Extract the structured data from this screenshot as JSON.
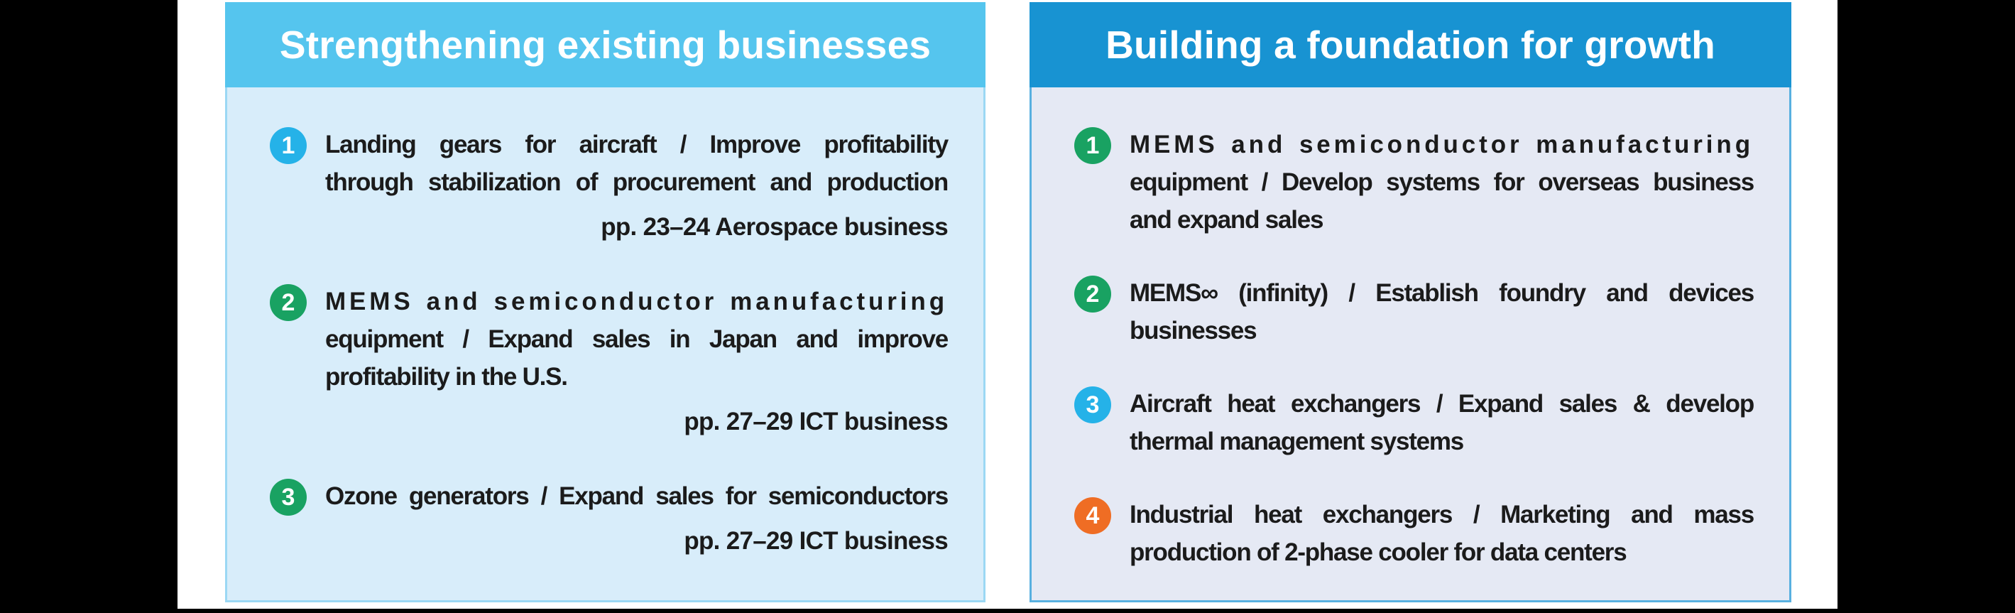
{
  "page": {
    "frame_color": "#000000",
    "paper_color": "#ffffff",
    "text_color": "#1b1b1b"
  },
  "panels": [
    {
      "title": "Strengthening existing businesses",
      "header_bg": "#55c5ee",
      "body_bg": "#d8edfa",
      "border_color": "#9bd8f4",
      "items": [
        {
          "num": "1",
          "badge_color": "#25b2e8",
          "lines": [
            "Landing gears for aircraft / Improve profitability",
            "through stabilization of procurement and production"
          ],
          "ref": "pp. 23–24 Aerospace business"
        },
        {
          "num": "2",
          "badge_color": "#19a262",
          "lines": [
            "MEMS and semiconductor manufacturing",
            "equipment / Expand sales in Japan and improve",
            "profitability in the U.S."
          ],
          "ref": "pp. 27–29 ICT business"
        },
        {
          "num": "3",
          "badge_color": "#19a262",
          "lines": [
            "Ozone generators / Expand sales for semiconductors"
          ],
          "ref": "pp. 27–29 ICT business"
        }
      ]
    },
    {
      "title": "Building a foundation for growth",
      "header_bg": "#1893d2",
      "body_bg": "#e5e9f4",
      "border_color": "#58b0e0",
      "items": [
        {
          "num": "1",
          "badge_color": "#19a262",
          "lines": [
            "MEMS and semiconductor manufacturing",
            "equipment / Develop systems for overseas business",
            "and expand sales"
          ]
        },
        {
          "num": "2",
          "badge_color": "#19a262",
          "lines": [
            "MEMS∞ (infinity) / Establish foundry and devices",
            "businesses"
          ]
        },
        {
          "num": "3",
          "badge_color": "#25b2e8",
          "lines": [
            "Aircraft heat exchangers / Expand sales & develop",
            "thermal management systems"
          ]
        },
        {
          "num": "4",
          "badge_color": "#ef6d24",
          "lines": [
            "Industrial heat exchangers / Marketing and mass",
            "production of 2-phase cooler for data centers"
          ]
        }
      ]
    }
  ]
}
